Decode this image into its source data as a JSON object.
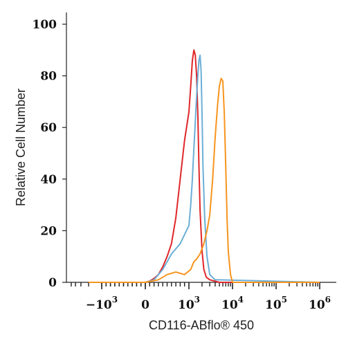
{
  "chart_data": {
    "type": "line",
    "title": "",
    "xlabel": "CD116-ABflo® 450",
    "ylabel": "Relative Cell Number",
    "x_scale": "biexponential",
    "ylim": [
      0,
      100
    ],
    "y_ticks": [
      0,
      20,
      40,
      60,
      80,
      100
    ],
    "x_ticks": [
      {
        "label": "−10",
        "exp": "3"
      },
      {
        "label": "0",
        "exp": ""
      },
      {
        "label": "10",
        "exp": "3"
      },
      {
        "label": "10",
        "exp": "4"
      },
      {
        "label": "10",
        "exp": "5"
      },
      {
        "label": "10",
        "exp": "6"
      }
    ],
    "grid": false,
    "legend": "none",
    "series": [
      {
        "color": "#e0262a",
        "x": [
          -2000,
          0,
          100,
          200,
          300,
          400,
          500,
          600,
          700,
          800,
          900,
          1000,
          1100,
          1200,
          1300,
          1400,
          1500,
          1600,
          1700,
          1800,
          2000,
          2200,
          2500,
          3000,
          5000,
          1000000
        ],
        "y": [
          0,
          0,
          0.5,
          1.5,
          3,
          6,
          10,
          15,
          25,
          40,
          55,
          66,
          76,
          86,
          90,
          88,
          80,
          65,
          45,
          28,
          12,
          5,
          2,
          1,
          0,
          0
        ]
      },
      {
        "color": "#6baed6",
        "x": [
          -2000,
          0,
          200,
          400,
          600,
          800,
          1000,
          1100,
          1200,
          1300,
          1400,
          1500,
          1600,
          1700,
          1800,
          1900,
          2000,
          2100,
          2300,
          2600,
          3000,
          4000,
          1000000
        ],
        "y": [
          0,
          0,
          1,
          5,
          11,
          15,
          22,
          30,
          40,
          52,
          62,
          72,
          80,
          86,
          88,
          82,
          65,
          45,
          25,
          10,
          3,
          1,
          0
        ]
      },
      {
        "color": "#f7941d",
        "x": [
          -2000,
          0,
          300,
          500,
          700,
          900,
          1100,
          1300,
          1500,
          1800,
          2200,
          2600,
          3000,
          3500,
          4000,
          4500,
          5000,
          5500,
          6000,
          6500,
          7000,
          7500,
          8000,
          9000,
          10000,
          1000000
        ],
        "y": [
          0,
          0,
          1,
          3,
          4,
          3,
          5,
          8,
          9,
          11,
          15,
          20,
          26,
          40,
          56,
          68,
          76,
          79,
          78,
          65,
          45,
          25,
          12,
          3,
          0,
          0
        ]
      }
    ]
  }
}
